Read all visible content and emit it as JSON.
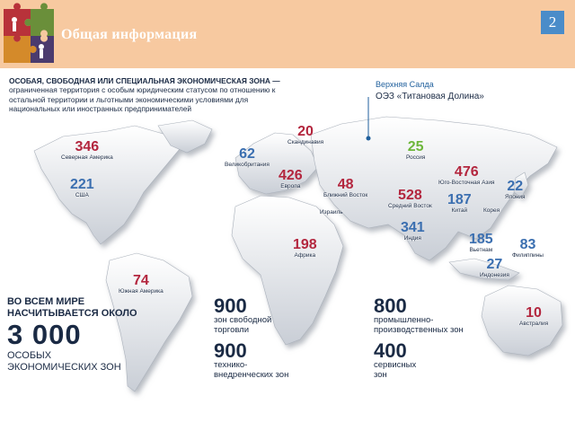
{
  "header": {
    "title": "Общая информация",
    "page_number": "2"
  },
  "definition": {
    "lead": "ОСОБАЯ, СВОБОДНАЯ ИЛИ СПЕЦИАЛЬНАЯ ЭКОНОМИЧЕСКАЯ ЗОНА —",
    "body": "ограниченная территория с особым юридическим статусом по отношению к остальной территории и льготными экономическими условиями для национальных или иностранных предпринимателей"
  },
  "oez": {
    "place": "Верхняя Салда",
    "name": "ОЭЗ «Титановая Долина»"
  },
  "regions": [
    {
      "id": "north-america",
      "value": "346",
      "label": "Северная Америка",
      "color": "red"
    },
    {
      "id": "usa",
      "value": "221",
      "label": "США",
      "color": "blue"
    },
    {
      "id": "uk",
      "value": "62",
      "label": "Великобритания",
      "color": "blue"
    },
    {
      "id": "scandinavia",
      "value": "20",
      "label": "Скандинавия",
      "color": "red"
    },
    {
      "id": "europe",
      "value": "426",
      "label": "Европа",
      "color": "red"
    },
    {
      "id": "russia",
      "value": "25",
      "label": "Россия",
      "color": "green"
    },
    {
      "id": "near-east",
      "value": "48",
      "label": "Ближний Восток",
      "color": "red"
    },
    {
      "id": "israel",
      "value": "",
      "label": "Израиль",
      "color": "red"
    },
    {
      "id": "middle-east",
      "value": "528",
      "label": "Средний Восток",
      "color": "red"
    },
    {
      "id": "sea",
      "value": "476",
      "label": "Юго-Восточная Азия",
      "color": "red"
    },
    {
      "id": "china",
      "value": "187",
      "label": "Китай",
      "color": "blue"
    },
    {
      "id": "japan",
      "value": "22",
      "label": "Япония",
      "color": "blue"
    },
    {
      "id": "korea",
      "value": "",
      "label": "Корея",
      "color": "blue"
    },
    {
      "id": "india",
      "value": "341",
      "label": "Индия",
      "color": "blue"
    },
    {
      "id": "vietnam",
      "value": "185",
      "label": "Вьетнам",
      "color": "blue"
    },
    {
      "id": "philippines",
      "value": "83",
      "label": "Филиппины",
      "color": "blue"
    },
    {
      "id": "indonesia",
      "value": "27",
      "label": "Индонезия",
      "color": "blue"
    },
    {
      "id": "africa",
      "value": "198",
      "label": "Африка",
      "color": "red"
    },
    {
      "id": "south-america",
      "value": "74",
      "label": "Южная Америка",
      "color": "red"
    },
    {
      "id": "australia",
      "value": "10",
      "label": "Австралия",
      "color": "red"
    }
  ],
  "total": {
    "line1": "ВО ВСЕМ МИРЕ",
    "line2": "НАСЧИТЫВАЕТСЯ ОКОЛО",
    "value": "3 000",
    "line3": "ОСОБЫХ",
    "line4": "ЭКОНОМИЧЕСКИХ ЗОН"
  },
  "stats": [
    {
      "value": "900",
      "line1": "зон свободной",
      "line2": "торговли"
    },
    {
      "value": "900",
      "line1": "технико-",
      "line2": "внедренческих зон"
    },
    {
      "value": "800",
      "line1": "промышленно-",
      "line2": "производственных зон"
    },
    {
      "value": "400",
      "line1": "сервисных",
      "line2": "зон"
    }
  ],
  "colors": {
    "red": "#b3263e",
    "blue": "#3b6fb0",
    "green": "#6db63a",
    "header": "#f7c9a0",
    "badge": "#4a8cc9"
  }
}
